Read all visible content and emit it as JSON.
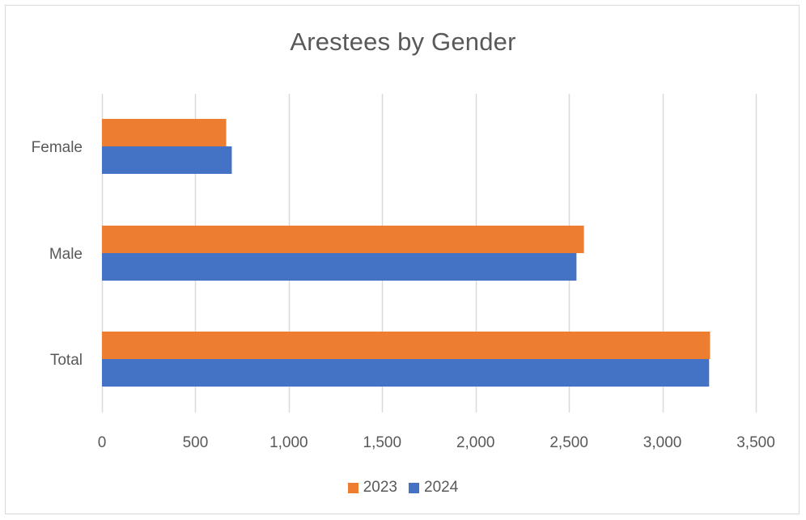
{
  "chart_data": {
    "type": "bar",
    "orientation": "horizontal",
    "title": "Arestees by Gender",
    "categories": [
      "Female",
      "Male",
      "Total"
    ],
    "series": [
      {
        "name": "2023",
        "color": "#ED7D31",
        "values": [
          665,
          2580,
          3255
        ]
      },
      {
        "name": "2024",
        "color": "#4472C4",
        "values": [
          695,
          2540,
          3250
        ]
      }
    ],
    "xlim": [
      0,
      3500
    ],
    "xticks": [
      "0",
      "500",
      "1,000",
      "1,500",
      "2,000",
      "2,500",
      "3,000",
      "3,500"
    ],
    "xtick_values": [
      0,
      500,
      1000,
      1500,
      2000,
      2500,
      3000,
      3500
    ],
    "grid": "vertical",
    "legend": "bottom"
  }
}
